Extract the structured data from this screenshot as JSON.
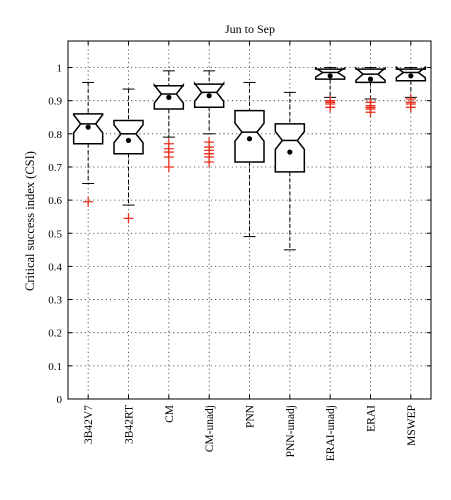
{
  "chart_data": {
    "type": "box",
    "title": "Jun to Sep",
    "xlabel": "",
    "ylabel": "Critical success index (CSI)",
    "ylim": [
      0,
      1.08
    ],
    "yticks": [
      0,
      0.1,
      0.2,
      0.3,
      0.4,
      0.5,
      0.6,
      0.7,
      0.8,
      0.9,
      1
    ],
    "ytick_labels": [
      "0",
      "0.1",
      "0.2",
      "0.3",
      "0.4",
      "0.5",
      "0.6",
      "0.7",
      "0.8",
      "0.9",
      "1"
    ],
    "grid": true,
    "notched": true,
    "categories": [
      "3B42V7",
      "3B42RT",
      "CM",
      "CM-unadj",
      "PNN",
      "PNN-unadj",
      "ERAI-unadj",
      "ERAI",
      "MSWEP"
    ],
    "boxes": [
      {
        "q1": 0.77,
        "median": 0.83,
        "q3": 0.86,
        "mean": 0.82,
        "whisker_low": 0.65,
        "whisker_high": 0.955,
        "outliers": [
          0.595
        ]
      },
      {
        "q1": 0.74,
        "median": 0.8,
        "q3": 0.84,
        "mean": 0.78,
        "whisker_low": 0.585,
        "whisker_high": 0.935,
        "outliers": [
          0.545
        ]
      },
      {
        "q1": 0.875,
        "median": 0.92,
        "q3": 0.945,
        "mean": 0.91,
        "whisker_low": 0.79,
        "whisker_high": 0.99,
        "outliers": [
          0.7,
          0.73,
          0.745,
          0.755,
          0.77
        ]
      },
      {
        "q1": 0.88,
        "median": 0.925,
        "q3": 0.95,
        "mean": 0.915,
        "whisker_low": 0.8,
        "whisker_high": 0.99,
        "outliers": [
          0.715,
          0.73,
          0.74,
          0.75,
          0.76,
          0.775
        ]
      },
      {
        "q1": 0.715,
        "median": 0.805,
        "q3": 0.87,
        "mean": 0.785,
        "whisker_low": 0.49,
        "whisker_high": 0.955,
        "outliers": []
      },
      {
        "q1": 0.685,
        "median": 0.78,
        "q3": 0.83,
        "mean": 0.745,
        "whisker_low": 0.45,
        "whisker_high": 0.925,
        "outliers": []
      },
      {
        "q1": 0.965,
        "median": 0.985,
        "q3": 0.995,
        "mean": 0.975,
        "whisker_low": 0.91,
        "whisker_high": 1.0,
        "outliers": [
          0.88,
          0.89,
          0.895,
          0.9
        ]
      },
      {
        "q1": 0.955,
        "median": 0.98,
        "q3": 0.995,
        "mean": 0.965,
        "whisker_low": 0.905,
        "whisker_high": 1.0,
        "outliers": [
          0.865,
          0.875,
          0.88,
          0.885,
          0.895
        ]
      },
      {
        "q1": 0.96,
        "median": 0.985,
        "q3": 0.995,
        "mean": 0.975,
        "whisker_low": 0.91,
        "whisker_high": 1.0,
        "outliers": [
          0.88,
          0.89,
          0.895,
          0.905
        ]
      }
    ],
    "colors": {
      "box": "#000000",
      "outlier": "#e8311f",
      "grid": "#333333",
      "background": "#ffffff"
    }
  }
}
